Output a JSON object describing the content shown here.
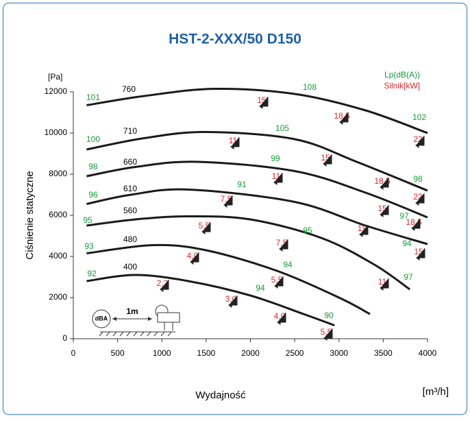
{
  "chart_data": {
    "type": "line",
    "title": "HST-2-XXX/50 D150",
    "y_unit": "[Pa]",
    "x_label": "Wydajność",
    "x_unit": "[m³/h]",
    "y_label": "Ciśnienie statyczne",
    "legend_db": "Lp(dB(A))",
    "legend_kw": "Silnik[kW]",
    "db_color": "#1a9a3a",
    "kw_color": "#d9262c",
    "xlim": [
      0,
      4000
    ],
    "xticks": [
      0,
      500,
      1000,
      1500,
      2000,
      2500,
      3000,
      3500,
      4000
    ],
    "ylim": [
      0,
      12000
    ],
    "yticks": [
      0,
      2000,
      4000,
      6000,
      8000,
      10000,
      12000
    ],
    "series": [
      {
        "name": "760",
        "color": "#1a1a1a",
        "x": [
          150,
          800,
          1600,
          2500,
          3300,
          4000
        ],
        "values": [
          11350,
          11800,
          12150,
          11900,
          11100,
          10000
        ]
      },
      {
        "name": "710",
        "color": "#1a1a1a",
        "x": [
          150,
          800,
          1500,
          2500,
          3200,
          4000
        ],
        "values": [
          9200,
          9750,
          10050,
          9700,
          8600,
          7200
        ]
      },
      {
        "name": "660",
        "color": "#1a1a1a",
        "x": [
          150,
          700,
          1400,
          2500,
          3300,
          4000
        ],
        "values": [
          7900,
          8350,
          8600,
          8150,
          7100,
          5900
        ]
      },
      {
        "name": "610",
        "color": "#1a1a1a",
        "x": [
          150,
          650,
          1300,
          2500,
          3300,
          4000
        ],
        "values": [
          6550,
          7000,
          7250,
          6650,
          5500,
          4600
        ]
      },
      {
        "name": "560",
        "color": "#1a1a1a",
        "x": [
          150,
          700,
          1300,
          2000,
          2800,
          3400,
          3800
        ],
        "values": [
          5500,
          5800,
          5950,
          5800,
          4900,
          3600,
          2400
        ]
      },
      {
        "name": "480",
        "color": "#1a1a1a",
        "x": [
          150,
          900,
          1500,
          2300,
          3000,
          3350
        ],
        "values": [
          4150,
          4550,
          4300,
          3300,
          2000,
          1200
        ]
      },
      {
        "name": "400",
        "color": "#1a1a1a",
        "x": [
          150,
          700,
          1300,
          2000,
          2600,
          2950
        ],
        "values": [
          2800,
          3100,
          2800,
          2100,
          1200,
          650
        ]
      }
    ],
    "db_labels": [
      "101",
      "108",
      "102",
      "100",
      "105",
      "98",
      "99",
      "98",
      "96",
      "91",
      "97",
      "95",
      "95",
      "94",
      "93",
      "94",
      "97",
      "92",
      "94",
      "90"
    ],
    "kw_labels": [
      "15",
      "18,5",
      "11",
      "22",
      "15",
      "11",
      "18,5",
      "22",
      "7,5",
      "15",
      "18,5",
      "5,5",
      "11",
      "7,5",
      "15",
      "4,0",
      "5,5",
      "11",
      "2,2",
      "3,0",
      "4,0",
      "5,5"
    ],
    "icon_dba": "dBA",
    "icon_distance": "1m"
  }
}
